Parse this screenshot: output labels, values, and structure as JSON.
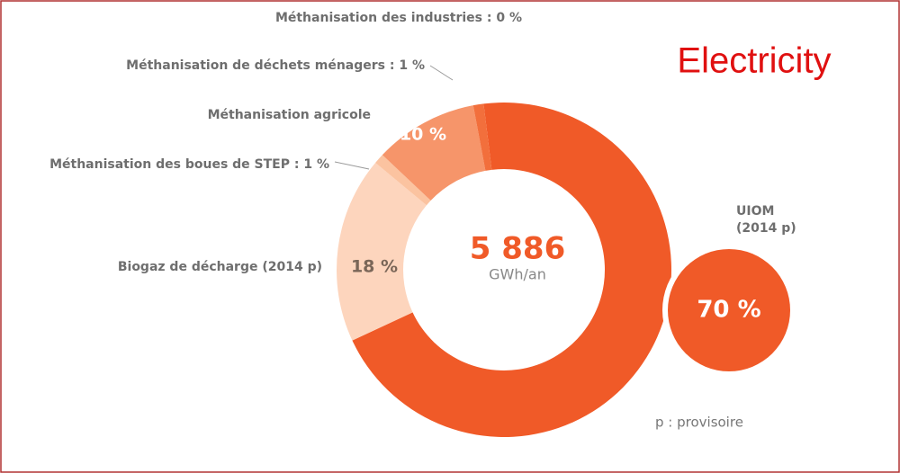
{
  "chart_data": {
    "type": "pie",
    "donut": true,
    "title": "Electricity",
    "center_value": "5 886",
    "center_unit": "GWh/an",
    "note": "p : provisoire",
    "categories": [
      "UIOM (2014 p)",
      "Biogaz de décharge (2014 p)",
      "Méthanisation des boues de STEP : 1 %",
      "Méthanisation agricole",
      "Méthanisation de déchets ménagers : 1 %",
      "Méthanisation des industries : 0 %"
    ],
    "values": [
      70,
      18,
      1,
      10,
      1,
      0
    ],
    "value_labels": [
      "70 %",
      "18 %",
      null,
      "10 %",
      null,
      null
    ],
    "colors": [
      "#f05a28",
      "#fdd5bd",
      "#fbc3a0",
      "#f6956a",
      "#f26f3c",
      "#f05a28"
    ]
  }
}
